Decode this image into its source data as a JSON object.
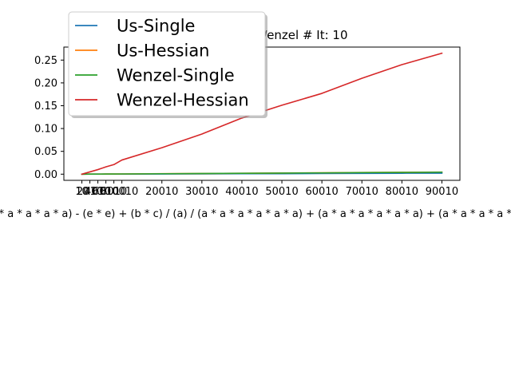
{
  "chart_data": {
    "type": "line",
    "title": "Us vs. Wenzel # It: 10",
    "xlabel": "((a * a * a * a * a * a * a * a * a * a) - (e * e) + (b * c) / (a) / (a * a * a * a * a * a) + (a * a * a * a * a * a) + (a * a * a * a * a * a * a * a * a) - (e * e * e * e",
    "ylabel": "",
    "xlim": [
      -4490,
      94510
    ],
    "ylim": [
      -0.0135,
      0.2785
    ],
    "x_ticks": [
      10,
      2010,
      4010,
      6010,
      8010,
      10010,
      20010,
      30010,
      40010,
      50010,
      60010,
      70010,
      80010,
      90010
    ],
    "y_ticks": [
      0.0,
      0.05,
      0.1,
      0.15,
      0.2,
      0.25
    ],
    "y_tick_labels": [
      "0.00",
      "0.05",
      "0.10",
      "0.15",
      "0.20",
      "0.25"
    ],
    "grid": false,
    "legend_position": "upper-left",
    "x": [
      10,
      2010,
      4010,
      6010,
      8010,
      10010,
      20010,
      30010,
      40010,
      50010,
      60010,
      70010,
      80010,
      90010
    ],
    "series": [
      {
        "name": "Us-Single",
        "color": "#1f77b4",
        "values": [
          0.0,
          0.0001,
          0.0001,
          0.0001,
          0.0002,
          0.0002,
          0.0004,
          0.0006,
          0.0009,
          0.0011,
          0.0014,
          0.0017,
          0.002,
          0.0022
        ]
      },
      {
        "name": "Us-Hessian",
        "color": "#ff7f0e",
        "values": [
          0.0,
          0.0001,
          0.0002,
          0.0003,
          0.0004,
          0.0005,
          0.001,
          0.0015,
          0.002,
          0.0025,
          0.003,
          0.0036,
          0.0041,
          0.0046
        ]
      },
      {
        "name": "Wenzel-Single",
        "color": "#2ca02c",
        "values": [
          0.0,
          0.0001,
          0.0002,
          0.0003,
          0.0004,
          0.0005,
          0.0009,
          0.0014,
          0.0019,
          0.0024,
          0.0029,
          0.0034,
          0.0039,
          0.0044
        ]
      },
      {
        "name": "Wenzel-Hessian",
        "color": "#d62728",
        "values": [
          0.0,
          0.005,
          0.01,
          0.016,
          0.021,
          0.031,
          0.058,
          0.088,
          0.123,
          0.151,
          0.177,
          0.21,
          0.24,
          0.265
        ]
      }
    ]
  }
}
